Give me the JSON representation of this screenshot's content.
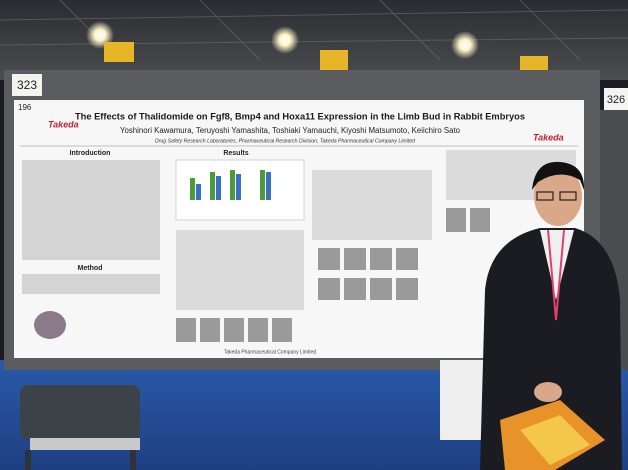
{
  "board_number": "323",
  "poster_number": "196",
  "right_board_number": "326",
  "poster": {
    "logo_left": "Takeda",
    "logo_right": "Takeda",
    "title": "The Effects of Thalidomide on Fgf8, Bmp4 and Hoxa11 Expression in the Limb Bud in Rabbit Embryos",
    "authors": "Yoshinori Kawamura, Teruyoshi Yamashita, Toshiaki Yamauchi, Kiyoshi Matsumoto, Keiichiro Sato",
    "affiliation": "Drug Safety Research Laboratories, Pharmaceutical Research Division, Takeda Pharmaceutical Company Limited",
    "sections": [
      "Introduction",
      "Results",
      "Method"
    ],
    "footer": "Takeda Pharmaceutical Company Limited"
  }
}
